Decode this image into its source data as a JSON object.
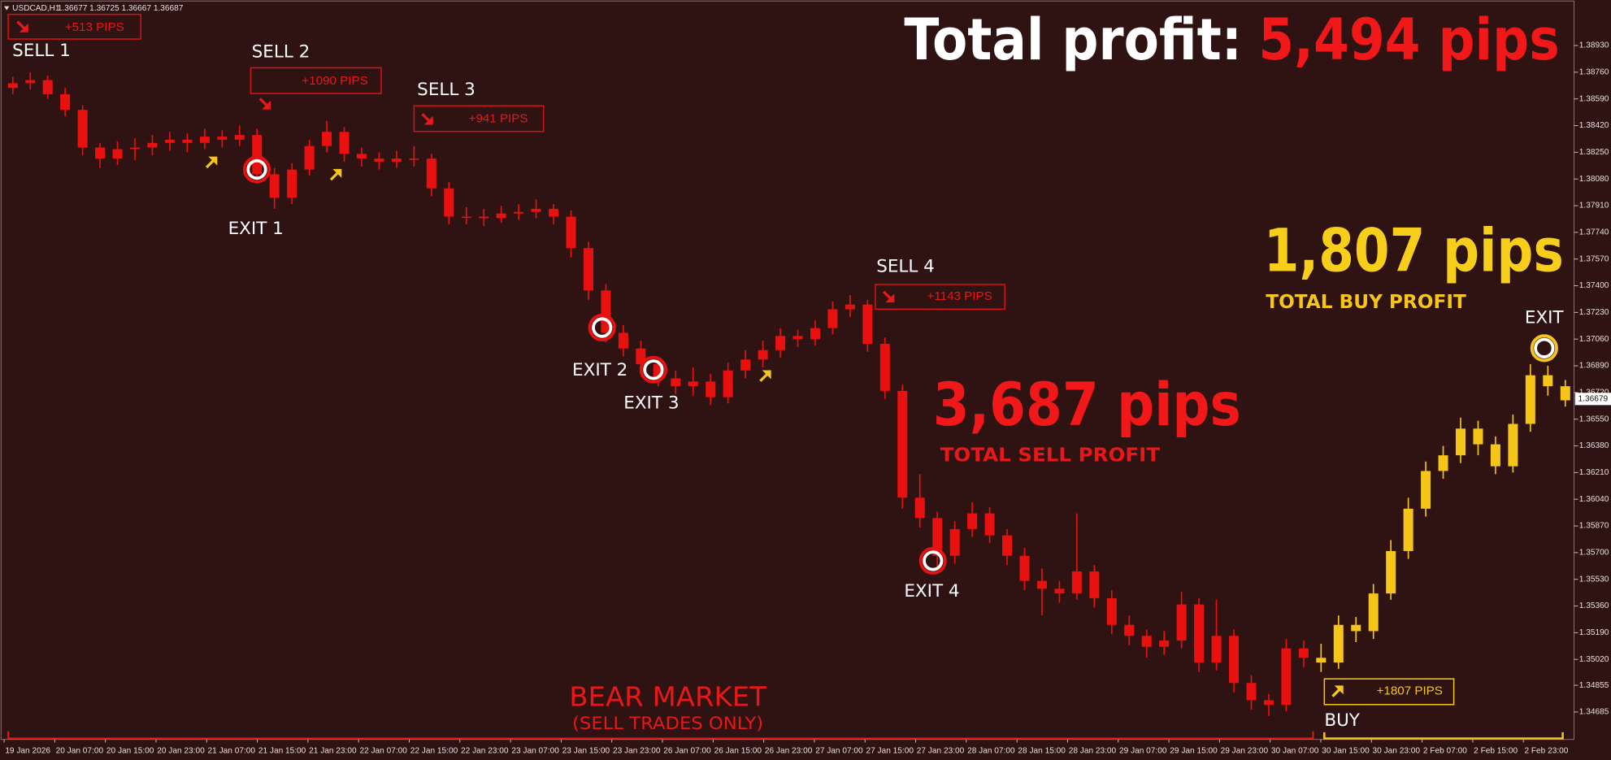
{
  "chart_data": {
    "type": "candlestick",
    "symbol": "USDCAD,H1",
    "header_prices": "1.36677 1.36725 1.36667 1.36687",
    "title": "Total profit:",
    "title_value": "5,494 pips",
    "sell_total": "3,687 pips",
    "sell_total_label": "TOTAL SELL PROFIT",
    "buy_total": "1,807 pips",
    "buy_total_label": "TOTAL BUY PROFIT",
    "region_label": "BEAR MARKET",
    "region_sublabel": "(SELL TRADES ONLY)",
    "trades": [
      {
        "label": "SELL 1",
        "result": "+513 PIPS"
      },
      {
        "label": "SELL 2",
        "result": "+1090 PIPS"
      },
      {
        "label": "SELL 3",
        "result": "+941 PIPS"
      },
      {
        "label": "SELL 4",
        "result": "+1143 PIPS"
      },
      {
        "label": "BUY",
        "result": "+1807 PIPS"
      }
    ],
    "exits": [
      "EXIT 1",
      "EXIT 2",
      "EXIT 3",
      "EXIT 4",
      "EXIT"
    ],
    "x_labels": [
      "19 Jan 2026",
      "20 Jan 07:00",
      "20 Jan 15:00",
      "20 Jan 23:00",
      "21 Jan 07:00",
      "21 Jan 15:00",
      "21 Jan 23:00",
      "22 Jan 07:00",
      "22 Jan 15:00",
      "22 Jan 23:00",
      "23 Jan 07:00",
      "23 Jan 15:00",
      "23 Jan 23:00",
      "26 Jan 07:00",
      "26 Jan 15:00",
      "26 Jan 23:00",
      "27 Jan 07:00",
      "27 Jan 15:00",
      "27 Jan 23:00",
      "28 Jan 07:00",
      "28 Jan 15:00",
      "28 Jan 23:00",
      "29 Jan 07:00",
      "29 Jan 15:00",
      "29 Jan 23:00",
      "30 Jan 07:00",
      "30 Jan 15:00",
      "30 Jan 23:00",
      "2 Feb 07:00",
      "2 Feb 15:00",
      "2 Feb 23:00"
    ],
    "ylim": [
      1.3451,
      1.3922
    ],
    "yticks": [
      {
        "value": 1.3893,
        "label": "1.38930"
      },
      {
        "value": 1.3876,
        "label": "1.38760"
      },
      {
        "value": 1.3859,
        "label": "1.38590"
      },
      {
        "value": 1.3842,
        "label": "1.38420"
      },
      {
        "value": 1.3825,
        "label": "1.38250"
      },
      {
        "value": 1.3808,
        "label": "1.38080"
      },
      {
        "value": 1.3791,
        "label": "1.37910"
      },
      {
        "value": 1.3774,
        "label": "1.37740"
      },
      {
        "value": 1.3757,
        "label": "1.37570"
      },
      {
        "value": 1.374,
        "label": "1.37400"
      },
      {
        "value": 1.3723,
        "label": "1.37230"
      },
      {
        "value": 1.3706,
        "label": "1.37060"
      },
      {
        "value": 1.3689,
        "label": "1.36890"
      },
      {
        "value": 1.3672,
        "label": "1.36720"
      },
      {
        "value": 1.3655,
        "label": "1.36550"
      },
      {
        "value": 1.3638,
        "label": "1.36380"
      },
      {
        "value": 1.3621,
        "label": "1.36210"
      },
      {
        "value": 1.3604,
        "label": "1.36040"
      },
      {
        "value": 1.3587,
        "label": "1.35870"
      },
      {
        "value": 1.357,
        "label": "1.35700"
      },
      {
        "value": 1.3553,
        "label": "1.35530"
      },
      {
        "value": 1.3536,
        "label": "1.35360"
      },
      {
        "value": 1.3519,
        "label": "1.35190"
      },
      {
        "value": 1.3502,
        "label": "1.35020"
      },
      1.34855,
      1.34685
    ],
    "current_price": 1.36679,
    "sell_color": "#e8110f",
    "buy_color": "#f5c518",
    "sell_ohlc": [
      [
        1.3866,
        1.3873,
        1.3862,
        1.3869
      ],
      [
        1.3869,
        1.3876,
        1.3865,
        1.3871
      ],
      [
        1.3871,
        1.3874,
        1.3859,
        1.3862
      ],
      [
        1.3862,
        1.3866,
        1.3848,
        1.3852
      ],
      [
        1.3852,
        1.3855,
        1.3823,
        1.3828
      ],
      [
        1.3828,
        1.3831,
        1.3815,
        1.3821
      ],
      [
        1.3821,
        1.3832,
        1.3817,
        1.3827
      ],
      [
        1.3827,
        1.3834,
        1.382,
        1.3828
      ],
      [
        1.3828,
        1.3836,
        1.3823,
        1.3831
      ],
      [
        1.3831,
        1.3838,
        1.3826,
        1.3833
      ],
      [
        1.3833,
        1.3837,
        1.3825,
        1.3831
      ],
      [
        1.3831,
        1.384,
        1.3827,
        1.3835
      ],
      [
        1.3835,
        1.3839,
        1.3828,
        1.3833
      ],
      [
        1.3833,
        1.3842,
        1.3829,
        1.3836
      ],
      [
        1.3836,
        1.384,
        1.3805,
        1.3811
      ],
      [
        1.3811,
        1.3815,
        1.3789,
        1.3796
      ],
      [
        1.3796,
        1.3818,
        1.3792,
        1.3814
      ],
      [
        1.3814,
        1.3833,
        1.381,
        1.3829
      ],
      [
        1.3829,
        1.3845,
        1.3825,
        1.3838
      ],
      [
        1.3838,
        1.3841,
        1.3819,
        1.3824
      ],
      [
        1.3824,
        1.3828,
        1.3816,
        1.3821
      ],
      [
        1.3821,
        1.3825,
        1.3814,
        1.3819
      ],
      [
        1.3819,
        1.3826,
        1.3815,
        1.3821
      ],
      [
        1.3821,
        1.3829,
        1.3816,
        1.3821
      ],
      [
        1.3821,
        1.3824,
        1.3797,
        1.3802
      ],
      [
        1.3802,
        1.3806,
        1.3779,
        1.3784
      ],
      [
        1.3784,
        1.379,
        1.3779,
        1.3784
      ],
      [
        1.3784,
        1.3789,
        1.3778,
        1.3783
      ],
      [
        1.3783,
        1.3791,
        1.378,
        1.3786
      ],
      [
        1.3786,
        1.3792,
        1.3782,
        1.3787
      ],
      [
        1.3787,
        1.3795,
        1.3783,
        1.3789
      ],
      [
        1.3789,
        1.3792,
        1.3779,
        1.3784
      ],
      [
        1.3784,
        1.3788,
        1.3758,
        1.3764
      ],
      [
        1.3764,
        1.3768,
        1.3731,
        1.3737
      ],
      [
        1.3737,
        1.3741,
        1.3704,
        1.371
      ],
      [
        1.371,
        1.3715,
        1.3695,
        1.37
      ],
      [
        1.37,
        1.3705,
        1.3685,
        1.369
      ],
      [
        1.369,
        1.3694,
        1.3676,
        1.3681
      ],
      [
        1.3681,
        1.3686,
        1.3671,
        1.3676
      ],
      [
        1.3676,
        1.3688,
        1.367,
        1.3679
      ],
      [
        1.3679,
        1.3684,
        1.3664,
        1.3669
      ],
      [
        1.3669,
        1.3691,
        1.3665,
        1.3686
      ],
      [
        1.3686,
        1.3699,
        1.3681,
        1.3693
      ],
      [
        1.3693,
        1.3705,
        1.3688,
        1.3699
      ],
      [
        1.3699,
        1.3713,
        1.3694,
        1.3708
      ],
      [
        1.3708,
        1.3712,
        1.3701,
        1.3706
      ],
      [
        1.3706,
        1.3718,
        1.3702,
        1.3713
      ],
      [
        1.3713,
        1.373,
        1.3709,
        1.3725
      ],
      [
        1.3725,
        1.3734,
        1.372,
        1.3728
      ],
      [
        1.3728,
        1.3731,
        1.3698,
        1.3703
      ],
      [
        1.3703,
        1.3707,
        1.3668,
        1.3673
      ],
      [
        1.3673,
        1.3677,
        1.3598,
        1.3605
      ],
      [
        1.3605,
        1.362,
        1.3586,
        1.3592
      ],
      [
        1.3592,
        1.3596,
        1.3561,
        1.3568
      ],
      [
        1.3568,
        1.359,
        1.3563,
        1.3585
      ],
      [
        1.3585,
        1.3602,
        1.358,
        1.3595
      ],
      [
        1.3595,
        1.3599,
        1.3576,
        1.3581
      ],
      [
        1.3581,
        1.3585,
        1.3562,
        1.3568
      ],
      [
        1.3568,
        1.3573,
        1.3546,
        1.3552
      ],
      [
        1.3552,
        1.356,
        1.353,
        1.3547
      ],
      [
        1.3547,
        1.3552,
        1.3538,
        1.3544
      ],
      [
        1.3544,
        1.3595,
        1.354,
        1.3558
      ],
      [
        1.3558,
        1.3562,
        1.3535,
        1.3541
      ],
      [
        1.3541,
        1.3546,
        1.3518,
        1.3524
      ],
      [
        1.3524,
        1.353,
        1.3511,
        1.3517
      ],
      [
        1.3517,
        1.3521,
        1.3503,
        1.351
      ],
      [
        1.351,
        1.352,
        1.3505,
        1.3514
      ],
      [
        1.3514,
        1.3545,
        1.3509,
        1.3537
      ],
      [
        1.3537,
        1.3541,
        1.3494,
        1.35
      ],
      [
        1.35,
        1.354,
        1.3495,
        1.3517
      ],
      [
        1.3517,
        1.3521,
        1.3481,
        1.3487
      ],
      [
        1.3487,
        1.3492,
        1.347,
        1.3476
      ],
      [
        1.3476,
        1.348,
        1.3466,
        1.3473
      ],
      [
        1.3473,
        1.3515,
        1.3469,
        1.3509
      ],
      [
        1.3509,
        1.3514,
        1.3497,
        1.3503
      ]
    ],
    "buy_ohlc": [
      [
        1.3503,
        1.3512,
        1.3494,
        1.35
      ],
      [
        1.35,
        1.353,
        1.3496,
        1.3524
      ],
      [
        1.3524,
        1.3529,
        1.3513,
        1.352
      ],
      [
        1.352,
        1.355,
        1.3515,
        1.3544
      ],
      [
        1.3544,
        1.3578,
        1.354,
        1.3571
      ],
      [
        1.3571,
        1.3605,
        1.3566,
        1.3598
      ],
      [
        1.3598,
        1.3628,
        1.3593,
        1.3622
      ],
      [
        1.3622,
        1.3638,
        1.3617,
        1.3632
      ],
      [
        1.3632,
        1.3656,
        1.3627,
        1.3649
      ],
      [
        1.3649,
        1.3654,
        1.3632,
        1.3639
      ],
      [
        1.3639,
        1.3644,
        1.362,
        1.3625
      ],
      [
        1.3625,
        1.3658,
        1.3621,
        1.3652
      ],
      [
        1.3652,
        1.369,
        1.3647,
        1.3683
      ],
      [
        1.3683,
        1.3689,
        1.367,
        1.3676
      ],
      [
        1.3676,
        1.368,
        1.3663,
        1.3667
      ]
    ]
  }
}
